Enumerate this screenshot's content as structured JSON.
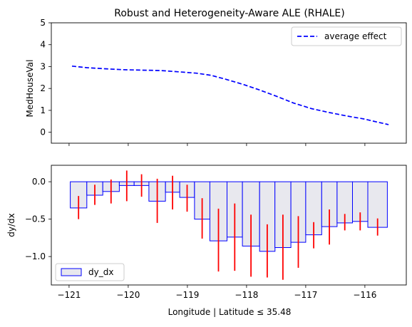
{
  "chart_data": [
    {
      "type": "line",
      "title": "Robust and Heterogeneity-Aware ALE (RHALE)",
      "xlabel": "",
      "ylabel": "MedHouseVal",
      "xlim": [
        -121.3,
        -115.3
      ],
      "ylim": [
        -0.5,
        5
      ],
      "yticks": [
        0,
        1,
        2,
        3,
        4,
        5
      ],
      "xticks": [
        -121,
        -120,
        -119,
        -118,
        -117,
        -116
      ],
      "grid": false,
      "legend": {
        "location": "top-right",
        "entries": [
          "average effect"
        ]
      },
      "series": [
        {
          "name": "average effect",
          "color": "#0000ff",
          "style": "dashed",
          "x": [
            -120.95,
            -120.7,
            -120.4,
            -120.1,
            -119.8,
            -119.45,
            -119.15,
            -118.85,
            -118.6,
            -118.35,
            -118.05,
            -117.8,
            -117.5,
            -117.2,
            -116.9,
            -116.6,
            -116.3,
            -116.0,
            -115.8,
            -115.6
          ],
          "y": [
            3.02,
            2.95,
            2.9,
            2.86,
            2.84,
            2.82,
            2.76,
            2.7,
            2.6,
            2.42,
            2.18,
            1.95,
            1.65,
            1.33,
            1.08,
            0.9,
            0.74,
            0.6,
            0.47,
            0.35
          ]
        }
      ]
    },
    {
      "type": "bar",
      "title": "",
      "xlabel": "Longitude | Latitude ≤ 35.48",
      "ylabel": "dy/dx",
      "xlim": [
        -121.3,
        -115.3
      ],
      "ylim": [
        -1.38,
        0.22
      ],
      "yticks": [
        0.0,
        -0.5,
        -1.0
      ],
      "ytick_labels": [
        "0.0",
        "−0.5",
        "−1.0"
      ],
      "xticks": [
        -121,
        -120,
        -119,
        -118,
        -117,
        -116
      ],
      "xtick_labels": [
        "−121",
        "−120",
        "−119",
        "−118",
        "−117",
        "−116"
      ],
      "grid": false,
      "legend": {
        "location": "bottom-left",
        "entries": [
          "dy_dx"
        ]
      },
      "bar_fill": "#e8e8ee",
      "bar_edge": "#0000ff",
      "error_color": "#ff0000",
      "bins": [
        {
          "x0": -120.98,
          "x1": -120.7,
          "value": -0.35,
          "err_low": -0.5,
          "err_high": -0.19
        },
        {
          "x0": -120.7,
          "x1": -120.43,
          "value": -0.18,
          "err_low": -0.31,
          "err_high": -0.04
        },
        {
          "x0": -120.43,
          "x1": -120.15,
          "value": -0.13,
          "err_low": -0.29,
          "err_high": 0.03
        },
        {
          "x0": -120.15,
          "x1": -119.9,
          "value": -0.05,
          "err_low": -0.26,
          "err_high": 0.15
        },
        {
          "x0": -119.9,
          "x1": -119.65,
          "value": -0.05,
          "err_low": -0.2,
          "err_high": 0.1
        },
        {
          "x0": -119.65,
          "x1": -119.37,
          "value": -0.26,
          "err_low": -0.55,
          "err_high": 0.04
        },
        {
          "x0": -119.37,
          "x1": -119.13,
          "value": -0.14,
          "err_low": -0.37,
          "err_high": 0.08
        },
        {
          "x0": -119.13,
          "x1": -118.88,
          "value": -0.21,
          "err_low": -0.4,
          "err_high": -0.04
        },
        {
          "x0": -118.88,
          "x1": -118.62,
          "value": -0.5,
          "err_low": -0.76,
          "err_high": -0.22
        },
        {
          "x0": -118.62,
          "x1": -118.33,
          "value": -0.79,
          "err_low": -1.2,
          "err_high": -0.36
        },
        {
          "x0": -118.33,
          "x1": -118.07,
          "value": -0.74,
          "err_low": -1.19,
          "err_high": -0.29
        },
        {
          "x0": -118.07,
          "x1": -117.78,
          "value": -0.86,
          "err_low": -1.27,
          "err_high": -0.44
        },
        {
          "x0": -117.78,
          "x1": -117.52,
          "value": -0.93,
          "err_low": -1.28,
          "err_high": -0.57
        },
        {
          "x0": -117.52,
          "x1": -117.25,
          "value": -0.88,
          "err_low": -1.31,
          "err_high": -0.44
        },
        {
          "x0": -117.25,
          "x1": -117.0,
          "value": -0.81,
          "err_low": -1.15,
          "err_high": -0.46
        },
        {
          "x0": -117.0,
          "x1": -116.73,
          "value": -0.71,
          "err_low": -0.89,
          "err_high": -0.54
        },
        {
          "x0": -116.73,
          "x1": -116.47,
          "value": -0.6,
          "err_low": -0.84,
          "err_high": -0.37
        },
        {
          "x0": -116.47,
          "x1": -116.21,
          "value": -0.55,
          "err_low": -0.65,
          "err_high": -0.43
        },
        {
          "x0": -116.21,
          "x1": -115.95,
          "value": -0.53,
          "err_low": -0.65,
          "err_high": -0.41
        },
        {
          "x0": -115.95,
          "x1": -115.62,
          "value": -0.61,
          "err_low": -0.72,
          "err_high": -0.49
        }
      ]
    }
  ]
}
